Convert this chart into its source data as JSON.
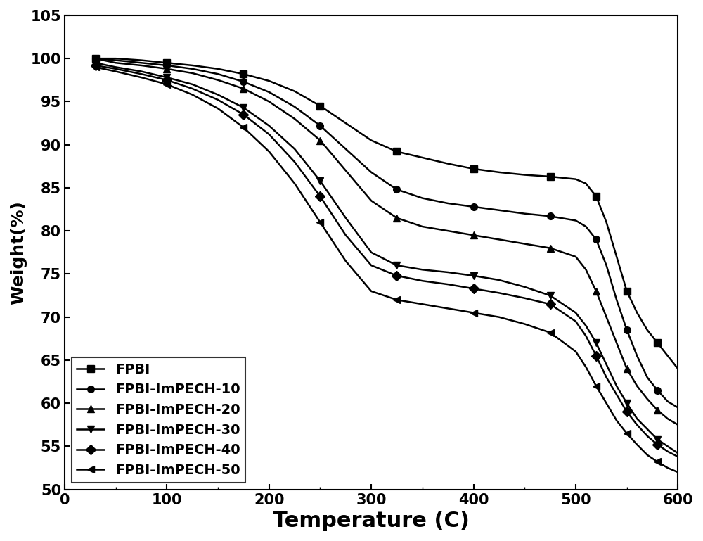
{
  "title": "",
  "xlabel": "Temperature (C)",
  "ylabel": "Weight(%)",
  "xlim": [
    0,
    600
  ],
  "ylim": [
    50,
    105
  ],
  "yticks": [
    50,
    55,
    60,
    65,
    70,
    75,
    80,
    85,
    90,
    95,
    100,
    105
  ],
  "xticks": [
    0,
    100,
    200,
    300,
    400,
    500,
    600
  ],
  "series": [
    {
      "label": "FPBI",
      "marker": "s",
      "color": "#000000",
      "x": [
        30,
        50,
        75,
        100,
        125,
        150,
        175,
        200,
        225,
        250,
        275,
        300,
        325,
        350,
        375,
        400,
        425,
        450,
        475,
        500,
        510,
        520,
        530,
        540,
        550,
        560,
        570,
        580,
        590,
        600
      ],
      "y": [
        100.0,
        100.0,
        99.8,
        99.5,
        99.2,
        98.8,
        98.2,
        97.4,
        96.2,
        94.5,
        92.5,
        90.5,
        89.2,
        88.5,
        87.8,
        87.2,
        86.8,
        86.5,
        86.3,
        86.0,
        85.5,
        84.0,
        81.0,
        77.0,
        73.0,
        70.5,
        68.5,
        67.0,
        65.5,
        64.0
      ]
    },
    {
      "label": "FPBI-ImPECH-10",
      "marker": "o",
      "color": "#000000",
      "x": [
        30,
        50,
        75,
        100,
        125,
        150,
        175,
        200,
        225,
        250,
        275,
        300,
        325,
        350,
        375,
        400,
        425,
        450,
        475,
        500,
        510,
        520,
        530,
        540,
        550,
        560,
        570,
        580,
        590,
        600
      ],
      "y": [
        100.0,
        99.8,
        99.5,
        99.2,
        98.8,
        98.2,
        97.3,
        96.1,
        94.4,
        92.2,
        89.5,
        86.8,
        84.8,
        83.8,
        83.2,
        82.8,
        82.4,
        82.0,
        81.7,
        81.2,
        80.5,
        79.0,
        76.0,
        72.0,
        68.5,
        65.5,
        63.0,
        61.5,
        60.2,
        59.5
      ]
    },
    {
      "label": "FPBI-ImPECH-20",
      "marker": "^",
      "color": "#000000",
      "x": [
        30,
        50,
        75,
        100,
        125,
        150,
        175,
        200,
        225,
        250,
        275,
        300,
        325,
        350,
        375,
        400,
        425,
        450,
        475,
        500,
        510,
        520,
        530,
        540,
        550,
        560,
        570,
        580,
        590,
        600
      ],
      "y": [
        100.0,
        99.5,
        99.2,
        98.8,
        98.3,
        97.5,
        96.5,
        95.0,
        93.0,
        90.5,
        87.0,
        83.5,
        81.5,
        80.5,
        80.0,
        79.5,
        79.0,
        78.5,
        78.0,
        77.0,
        75.5,
        73.0,
        70.0,
        67.0,
        64.0,
        62.0,
        60.5,
        59.2,
        58.2,
        57.5
      ]
    },
    {
      "label": "FPBI-ImPECH-30",
      "marker": "v",
      "color": "#000000",
      "x": [
        30,
        50,
        75,
        100,
        125,
        150,
        175,
        200,
        225,
        250,
        275,
        300,
        325,
        350,
        375,
        400,
        425,
        450,
        475,
        500,
        510,
        520,
        530,
        540,
        550,
        560,
        570,
        580,
        590,
        600
      ],
      "y": [
        99.5,
        99.0,
        98.5,
        97.8,
        97.0,
        95.8,
        94.3,
        92.2,
        89.5,
        85.8,
        81.5,
        77.5,
        76.0,
        75.5,
        75.2,
        74.8,
        74.3,
        73.5,
        72.5,
        70.5,
        69.0,
        67.0,
        64.5,
        62.0,
        60.0,
        58.2,
        57.0,
        55.8,
        55.0,
        54.2
      ]
    },
    {
      "label": "FPBI-ImPECH-40",
      "marker": "D",
      "color": "#000000",
      "x": [
        30,
        50,
        75,
        100,
        125,
        150,
        175,
        200,
        225,
        250,
        275,
        300,
        325,
        350,
        375,
        400,
        425,
        450,
        475,
        500,
        510,
        520,
        530,
        540,
        550,
        560,
        570,
        580,
        590,
        600
      ],
      "y": [
        99.2,
        98.8,
        98.2,
        97.5,
        96.5,
        95.2,
        93.5,
        91.2,
        88.0,
        84.0,
        79.5,
        76.0,
        74.8,
        74.2,
        73.8,
        73.3,
        72.8,
        72.2,
        71.5,
        69.5,
        67.8,
        65.5,
        63.0,
        61.0,
        59.0,
        57.5,
        56.2,
        55.2,
        54.4,
        53.8
      ]
    },
    {
      "label": "FPBI-ImPECH-50",
      "marker": "<",
      "color": "#000000",
      "x": [
        30,
        50,
        75,
        100,
        125,
        150,
        175,
        200,
        225,
        250,
        275,
        300,
        325,
        350,
        375,
        400,
        425,
        450,
        475,
        500,
        510,
        520,
        530,
        540,
        550,
        560,
        570,
        580,
        590,
        600
      ],
      "y": [
        99.0,
        98.5,
        97.8,
        97.0,
        95.8,
        94.2,
        92.0,
        89.2,
        85.5,
        81.0,
        76.5,
        73.0,
        72.0,
        71.5,
        71.0,
        70.5,
        70.0,
        69.2,
        68.2,
        66.0,
        64.2,
        62.0,
        60.0,
        58.0,
        56.5,
        55.2,
        54.0,
        53.2,
        52.5,
        52.0
      ]
    }
  ],
  "legend_loc": "lower left",
  "linewidth": 1.8,
  "markersize": 7,
  "markevery": 3,
  "background_color": "#ffffff",
  "axis_color": "#000000",
  "font_color": "#000000",
  "xlabel_fontsize": 22,
  "ylabel_fontsize": 18,
  "tick_fontsize": 15,
  "legend_fontsize": 14
}
